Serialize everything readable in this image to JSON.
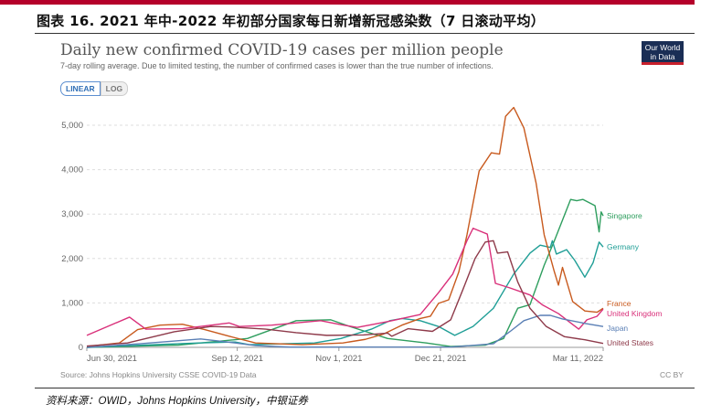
{
  "figure_title": "图表 16. 2021 年中-2022 年初部分国家每日新增新冠感染数（7 日滚动平均）",
  "logo_text": [
    "Our World",
    "in Data"
  ],
  "toggle": {
    "linear": "LINEAR",
    "log": "LOG",
    "selected": "LINEAR"
  },
  "source": "Source: Johns Hopkins University CSSE COVID-19 Data",
  "license": "CC BY",
  "footnote": "资料来源：OWID，Johns Hopkins University，中银证券",
  "chart_data": {
    "type": "line",
    "title": "Daily new confirmed COVID-19 cases per million people",
    "subtitle": "7-day rolling average. Due to limited testing, the number of confirmed cases is lower than the true number of infections.",
    "x_unit": "days since Jun 30, 2021",
    "xlim": [
      0,
      254
    ],
    "ylim": [
      0,
      5000
    ],
    "yticks": [
      0,
      1000,
      2000,
      3000,
      4000,
      5000
    ],
    "ytick_labels": [
      "0",
      "1,000",
      "2,000",
      "3,000",
      "4,000",
      "5,000"
    ],
    "xticks": [
      {
        "day": 0,
        "label": "Jun 30, 2021"
      },
      {
        "day": 74,
        "label": "Sep 12, 2021"
      },
      {
        "day": 124,
        "label": "Nov 1, 2021"
      },
      {
        "day": 174,
        "label": "Dec 21, 2021"
      },
      {
        "day": 254,
        "label": "Mar 11, 2022"
      }
    ],
    "grid": true,
    "legend": "inline-right",
    "series": [
      {
        "name": "Singapore",
        "color": "#2e9e5e",
        "points": [
          [
            0,
            0
          ],
          [
            45,
            50
          ],
          [
            79,
            200
          ],
          [
            103,
            600
          ],
          [
            120,
            620
          ],
          [
            130,
            460
          ],
          [
            148,
            200
          ],
          [
            167,
            100
          ],
          [
            179,
            20
          ],
          [
            196,
            50
          ],
          [
            205,
            200
          ],
          [
            212,
            880
          ],
          [
            218,
            960
          ],
          [
            225,
            1850
          ],
          [
            230,
            2400
          ],
          [
            235,
            2980
          ],
          [
            238,
            3330
          ],
          [
            241,
            3300
          ],
          [
            244,
            3330
          ],
          [
            250,
            3190
          ],
          [
            252,
            2600
          ],
          [
            253,
            3050
          ],
          [
            254,
            2960
          ]
        ]
      },
      {
        "name": "Germany",
        "color": "#1f9e96",
        "points": [
          [
            0,
            0
          ],
          [
            55,
            100
          ],
          [
            73,
            120
          ],
          [
            80,
            60
          ],
          [
            112,
            100
          ],
          [
            125,
            200
          ],
          [
            140,
            410
          ],
          [
            149,
            600
          ],
          [
            155,
            650
          ],
          [
            164,
            600
          ],
          [
            173,
            470
          ],
          [
            181,
            270
          ],
          [
            190,
            470
          ],
          [
            200,
            880
          ],
          [
            210,
            1650
          ],
          [
            218,
            2120
          ],
          [
            223,
            2300
          ],
          [
            228,
            2250
          ],
          [
            229,
            2400
          ],
          [
            231,
            2100
          ],
          [
            236,
            2200
          ],
          [
            240,
            1960
          ],
          [
            245,
            1580
          ],
          [
            249,
            1900
          ],
          [
            252,
            2370
          ],
          [
            254,
            2260
          ]
        ]
      },
      {
        "name": "France",
        "color": "#c85a1e",
        "points": [
          [
            0,
            20
          ],
          [
            16,
            100
          ],
          [
            25,
            400
          ],
          [
            36,
            500
          ],
          [
            47,
            520
          ],
          [
            58,
            400
          ],
          [
            70,
            250
          ],
          [
            83,
            100
          ],
          [
            106,
            60
          ],
          [
            126,
            100
          ],
          [
            137,
            180
          ],
          [
            146,
            300
          ],
          [
            155,
            500
          ],
          [
            164,
            650
          ],
          [
            169,
            700
          ],
          [
            173,
            990
          ],
          [
            178,
            1070
          ],
          [
            183,
            1700
          ],
          [
            187,
            2530
          ],
          [
            193,
            3970
          ],
          [
            199,
            4380
          ],
          [
            203,
            4350
          ],
          [
            206,
            5200
          ],
          [
            210,
            5400
          ],
          [
            215,
            4940
          ],
          [
            221,
            3700
          ],
          [
            225,
            2530
          ],
          [
            230,
            1700
          ],
          [
            232,
            1400
          ],
          [
            234,
            1800
          ],
          [
            239,
            1030
          ],
          [
            245,
            820
          ],
          [
            251,
            790
          ],
          [
            254,
            880
          ]
        ]
      },
      {
        "name": "United Kingdom",
        "color": "#d9307a",
        "points": [
          [
            0,
            270
          ],
          [
            21,
            680
          ],
          [
            29,
            410
          ],
          [
            47,
            420
          ],
          [
            70,
            550
          ],
          [
            75,
            470
          ],
          [
            91,
            500
          ],
          [
            115,
            600
          ],
          [
            125,
            510
          ],
          [
            133,
            450
          ],
          [
            148,
            580
          ],
          [
            155,
            650
          ],
          [
            164,
            740
          ],
          [
            173,
            1230
          ],
          [
            180,
            1650
          ],
          [
            187,
            2400
          ],
          [
            190,
            2680
          ],
          [
            197,
            2550
          ],
          [
            201,
            1440
          ],
          [
            208,
            1340
          ],
          [
            218,
            1180
          ],
          [
            224,
            960
          ],
          [
            232,
            760
          ],
          [
            242,
            410
          ],
          [
            246,
            620
          ],
          [
            251,
            700
          ],
          [
            254,
            860
          ]
        ]
      },
      {
        "name": "Japan",
        "color": "#5a7fb5",
        "points": [
          [
            0,
            0
          ],
          [
            26,
            80
          ],
          [
            56,
            190
          ],
          [
            73,
            100
          ],
          [
            83,
            40
          ],
          [
            100,
            5
          ],
          [
            180,
            10
          ],
          [
            200,
            80
          ],
          [
            208,
            350
          ],
          [
            215,
            600
          ],
          [
            223,
            720
          ],
          [
            228,
            720
          ],
          [
            234,
            640
          ],
          [
            245,
            540
          ],
          [
            254,
            470
          ]
        ]
      },
      {
        "name": "United States",
        "color": "#8e3a4a",
        "points": [
          [
            0,
            30
          ],
          [
            20,
            100
          ],
          [
            43,
            350
          ],
          [
            61,
            470
          ],
          [
            70,
            460
          ],
          [
            88,
            410
          ],
          [
            103,
            330
          ],
          [
            118,
            270
          ],
          [
            136,
            280
          ],
          [
            148,
            320
          ],
          [
            150,
            250
          ],
          [
            158,
            420
          ],
          [
            170,
            360
          ],
          [
            179,
            620
          ],
          [
            185,
            1300
          ],
          [
            191,
            2000
          ],
          [
            196,
            2370
          ],
          [
            200,
            2400
          ],
          [
            202,
            2120
          ],
          [
            207,
            2150
          ],
          [
            212,
            1470
          ],
          [
            218,
            880
          ],
          [
            226,
            470
          ],
          [
            235,
            240
          ],
          [
            245,
            170
          ],
          [
            254,
            90
          ]
        ]
      }
    ]
  }
}
